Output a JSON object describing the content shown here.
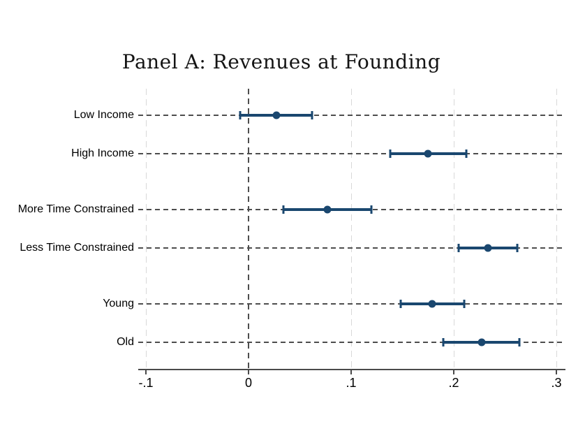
{
  "chart_data": {
    "type": "scatter",
    "subtype": "coefficient-dot-whisker",
    "title": "Panel A: Revenues at Founding",
    "xlabel": "",
    "ylabel": "",
    "legend": "none",
    "grid": {
      "horizontal": "dashed-per-category",
      "vertical_ticks": "light-dashed",
      "zero_line": "dark-dashed"
    },
    "categories": [
      "Low Income",
      "High Income",
      "More Time Constrained",
      "Less Time Constrained",
      "Young",
      "Old"
    ],
    "points": [
      {
        "label": "Low Income",
        "estimate": 0.027,
        "ci_low": -0.008,
        "ci_high": 0.062
      },
      {
        "label": "High Income",
        "estimate": 0.175,
        "ci_low": 0.138,
        "ci_high": 0.212
      },
      {
        "label": "More Time Constrained",
        "estimate": 0.077,
        "ci_low": 0.034,
        "ci_high": 0.12
      },
      {
        "label": "Less Time Constrained",
        "estimate": 0.233,
        "ci_low": 0.205,
        "ci_high": 0.262
      },
      {
        "label": "Young",
        "estimate": 0.179,
        "ci_low": 0.148,
        "ci_high": 0.21
      },
      {
        "label": "Old",
        "estimate": 0.227,
        "ci_low": 0.19,
        "ci_high": 0.264
      }
    ],
    "x_axis": {
      "ticks": [
        -0.1,
        0,
        0.1,
        0.2,
        0.3
      ],
      "tick_labels": [
        "-.1",
        "0",
        ".1",
        ".2",
        ".3"
      ],
      "range": [
        -0.1075,
        0.3088
      ],
      "zero_reference": 0
    },
    "row_offsets": [
      0.095,
      0.232,
      0.431,
      0.569,
      0.768,
      0.905
    ],
    "colors": {
      "marker": "#1a476f",
      "grid_dark": "#4d4d4d",
      "grid_light": "#d8d8d8",
      "axis": "#4a4a4a",
      "text": "#000000"
    }
  }
}
